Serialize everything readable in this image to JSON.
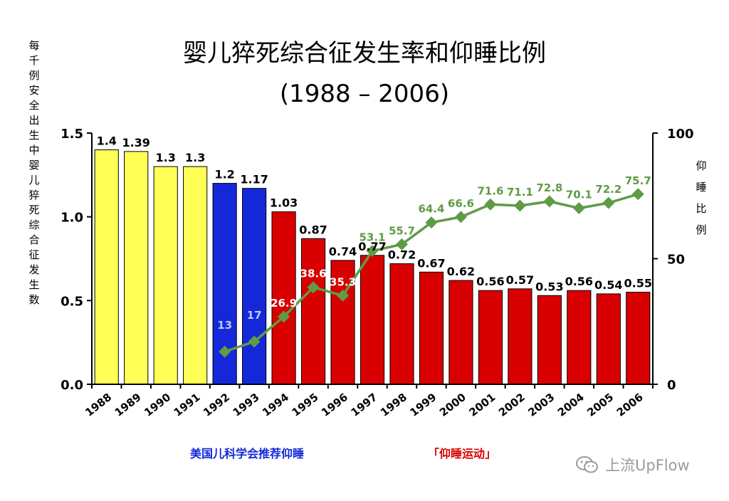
{
  "chart_data": {
    "type": "bar",
    "title": "婴儿猝死综合征发生率和仰睡比例",
    "subtitle": "(1988 – 2006)",
    "left_axis_label": "每千例安全出生中婴儿猝死综合征发生数",
    "right_axis_label": "仰睡比例",
    "categories": [
      "1988",
      "1989",
      "1990",
      "1991",
      "1992",
      "1993",
      "1994",
      "1995",
      "1996",
      "1997",
      "1998",
      "1999",
      "2000",
      "2001",
      "2002",
      "2003",
      "2004",
      "2005",
      "2006"
    ],
    "series": [
      {
        "name": "每千例安全出生中婴儿猝死综合征发生数",
        "kind": "bar",
        "axis": "left",
        "values": [
          1.4,
          1.39,
          1.3,
          1.3,
          1.2,
          1.17,
          1.03,
          0.87,
          0.74,
          0.77,
          0.72,
          0.67,
          0.62,
          0.56,
          0.57,
          0.53,
          0.56,
          0.54,
          0.55
        ],
        "labels": [
          "1.4",
          "1.39",
          "1.3",
          "1.3",
          "1.2",
          "1.17",
          "1.03",
          "0.87",
          "0.74",
          "0.77",
          "0.72",
          "0.67",
          "0.62",
          "0.56",
          "0.57",
          "0.53",
          "0.56",
          "0.54",
          "0.55"
        ],
        "colors": [
          "#ffff55",
          "#ffff55",
          "#ffff55",
          "#ffff55",
          "#1428d8",
          "#1428d8",
          "#d80000",
          "#d80000",
          "#d80000",
          "#d80000",
          "#d80000",
          "#d80000",
          "#d80000",
          "#d80000",
          "#d80000",
          "#d80000",
          "#d80000",
          "#d80000",
          "#d80000"
        ]
      },
      {
        "name": "仰睡比例",
        "kind": "line",
        "axis": "right",
        "x": [
          "1992",
          "1993",
          "1994",
          "1995",
          "1996",
          "1997",
          "1998",
          "1999",
          "2000",
          "2001",
          "2002",
          "2003",
          "2004",
          "2005",
          "2006"
        ],
        "values": [
          13,
          17,
          26.9,
          38.6,
          35.3,
          53.1,
          55.7,
          64.4,
          66.6,
          71.6,
          71.1,
          72.8,
          70.1,
          72.2,
          75.7
        ],
        "labels": [
          "13",
          "17",
          "26.9",
          "38.6",
          "35.3",
          "53.1",
          "55.7",
          "64.4",
          "66.6",
          "71.6",
          "71.1",
          "72.8",
          "70.1",
          "72.2",
          "75.7"
        ],
        "color": "#5f9b46"
      }
    ],
    "left_axis": {
      "min": 0,
      "max": 1.5,
      "ticks": [
        "0.0",
        "0.5",
        "1.0",
        "1.5"
      ]
    },
    "right_axis": {
      "min": 0,
      "max": 100,
      "ticks": [
        "0",
        "50",
        "100"
      ]
    },
    "annotations": [
      {
        "text": "美国儿科学会推荐仰睡",
        "color": "#1428d8"
      },
      {
        "text": "「仰睡运动」",
        "color": "#d80000"
      }
    ]
  },
  "watermark": "上流UpFlow",
  "colors": {
    "line": "#5f9b46",
    "line_label": "#5f9b46",
    "bar_label_on_red": "#ffffff"
  }
}
